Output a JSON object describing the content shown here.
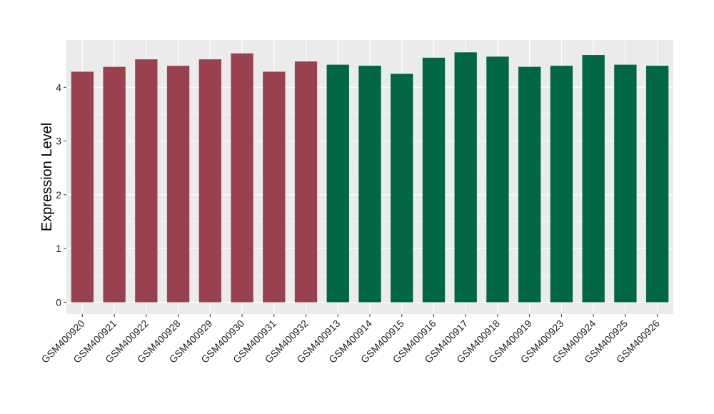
{
  "chart_data": {
    "type": "bar",
    "xlabel": "",
    "ylabel": "Expression Level",
    "ylim": [
      -0.22,
      4.88
    ],
    "yticks": [
      0,
      1,
      2,
      3,
      4
    ],
    "grid": true,
    "legend": "none",
    "background_color": "#ebebeb",
    "grid_color": "#ffffff",
    "categories": [
      "GSM400920",
      "GSM400921",
      "GSM400922",
      "GSM400928",
      "GSM400929",
      "GSM400930",
      "GSM400931",
      "GSM400932",
      "GSM400913",
      "GSM400914",
      "GSM400915",
      "GSM400916",
      "GSM400917",
      "GSM400918",
      "GSM400919",
      "GSM400923",
      "GSM400924",
      "GSM400925",
      "GSM400926"
    ],
    "values": [
      4.29,
      4.38,
      4.52,
      4.4,
      4.52,
      4.63,
      4.29,
      4.48,
      4.42,
      4.4,
      4.25,
      4.55,
      4.65,
      4.57,
      4.38,
      4.4,
      4.6,
      4.42,
      4.4
    ],
    "groups": [
      0,
      0,
      0,
      0,
      0,
      0,
      0,
      0,
      1,
      1,
      1,
      1,
      1,
      1,
      1,
      1,
      1,
      1,
      1
    ],
    "group_colors": [
      "#99414f",
      "#006644"
    ]
  }
}
